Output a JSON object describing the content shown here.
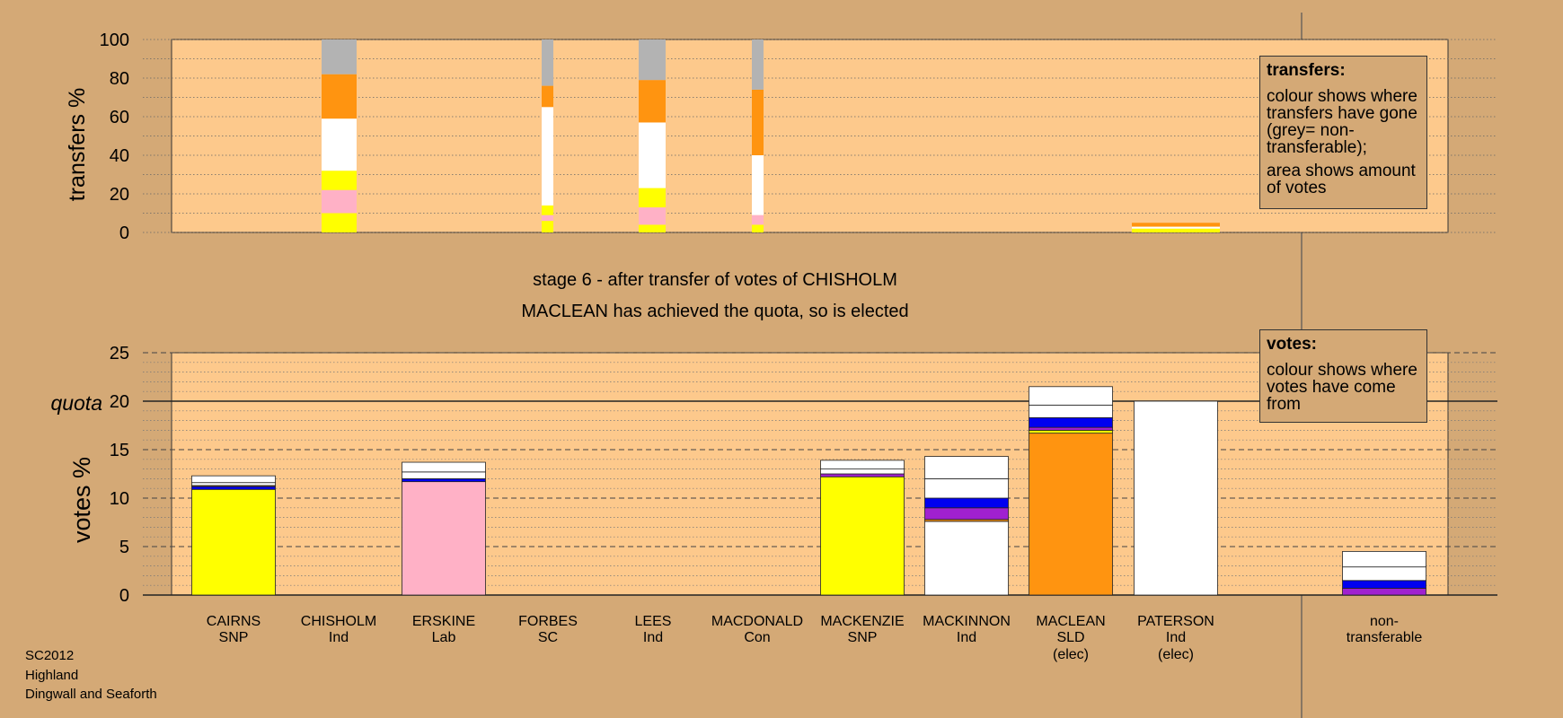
{
  "stage_title": "stage 6 - after transfer of votes of CHISHOLM",
  "stage_subtitle": "MACLEAN has achieved the quota, so is elected",
  "footer": {
    "line1": "SC2012",
    "line2": "Highland",
    "line3": "Dingwall and Seaforth"
  },
  "legend_transfers": {
    "title": "transfers:",
    "para1": "colour shows where transfers have gone (grey= non-transferable);",
    "para2": "area shows amount of votes"
  },
  "legend_votes": {
    "title": "votes:",
    "para1": "colour shows where votes have come from"
  },
  "colors": {
    "background": "#d4a976",
    "plot_area": "#fdc98c",
    "SNP": "#ffff00",
    "Lab": "#ffb1c6",
    "SLD": "#ff9410",
    "Ind": "#ffffff",
    "Con": "#0000f0",
    "SC": "#a020d0",
    "nontransferable": "#b3b3b3"
  },
  "chart_data": [
    {
      "type": "bar",
      "stacked": true,
      "ylabel": "transfers %",
      "ylim": [
        0,
        100
      ],
      "yticks": [
        0,
        20,
        40,
        60,
        80,
        100
      ],
      "grid": "dotted horizontal",
      "bars": [
        {
          "candidate": "CHISHOLM",
          "segments": [
            {
              "color": "SNP",
              "value": 10
            },
            {
              "color": "Lab",
              "value": 12
            },
            {
              "color": "SNP",
              "value": 10
            },
            {
              "color": "Ind",
              "value": 27
            },
            {
              "color": "SLD",
              "value": 23
            },
            {
              "color": "nontransferable",
              "value": 18
            }
          ]
        },
        {
          "candidate": "FORBES",
          "segments": [
            {
              "color": "SNP",
              "value": 6
            },
            {
              "color": "Lab",
              "value": 3
            },
            {
              "color": "SNP",
              "value": 5
            },
            {
              "color": "Ind",
              "value": 51
            },
            {
              "color": "SLD",
              "value": 11
            },
            {
              "color": "nontransferable",
              "value": 24
            }
          ]
        },
        {
          "candidate": "LEES",
          "segments": [
            {
              "color": "SNP",
              "value": 4
            },
            {
              "color": "Lab",
              "value": 9
            },
            {
              "color": "SNP",
              "value": 10
            },
            {
              "color": "Ind",
              "value": 34
            },
            {
              "color": "SLD",
              "value": 22
            },
            {
              "color": "nontransferable",
              "value": 21
            }
          ]
        },
        {
          "candidate": "MACDONALD",
          "segments": [
            {
              "color": "SNP",
              "value": 4
            },
            {
              "color": "Lab",
              "value": 5
            },
            {
              "color": "Ind",
              "value": 31
            },
            {
              "color": "SLD",
              "value": 34
            },
            {
              "color": "nontransferable",
              "value": 26
            }
          ]
        },
        {
          "candidate": "PATERSON",
          "segments": [
            {
              "color": "SNP",
              "value": 2
            },
            {
              "color": "Ind",
              "value": 1
            },
            {
              "color": "SLD",
              "value": 2
            }
          ]
        }
      ]
    },
    {
      "type": "bar",
      "stacked": true,
      "ylabel": "votes %",
      "ylim": [
        0,
        25
      ],
      "yticks": [
        0,
        5,
        10,
        15,
        20,
        25
      ],
      "quota": 20,
      "quota_label": "quota",
      "grid": "dashed major, dotted minor",
      "categories": [
        {
          "name": "CAIRNS",
          "party": "SNP",
          "note": ""
        },
        {
          "name": "CHISHOLM",
          "party": "Ind",
          "note": ""
        },
        {
          "name": "ERSKINE",
          "party": "Lab",
          "note": ""
        },
        {
          "name": "FORBES",
          "party": "SC",
          "note": ""
        },
        {
          "name": "LEES",
          "party": "Ind",
          "note": ""
        },
        {
          "name": "MACDONALD",
          "party": "Con",
          "note": ""
        },
        {
          "name": "MACKENZIE",
          "party": "SNP",
          "note": ""
        },
        {
          "name": "MACKINNON",
          "party": "Ind",
          "note": ""
        },
        {
          "name": "MACLEAN",
          "party": "SLD",
          "note": "(elec)"
        },
        {
          "name": "PATERSON",
          "party": "Ind",
          "note": "(elec)"
        },
        {
          "name": "non-",
          "party": "transferable",
          "note": ""
        }
      ],
      "bars": [
        {
          "segments": [
            {
              "color": "SNP",
              "value": 10.9
            },
            {
              "color": "Con",
              "value": 0.3
            },
            {
              "color": "SLD",
              "value": 0.1
            },
            {
              "color": "Ind",
              "value": 0.3
            },
            {
              "color": "Ind",
              "value": 0.7
            }
          ]
        },
        {
          "segments": []
        },
        {
          "segments": [
            {
              "color": "Lab",
              "value": 11.7
            },
            {
              "color": "Con",
              "value": 0.3
            },
            {
              "color": "Ind",
              "value": 0.7
            },
            {
              "color": "Ind",
              "value": 1.0
            }
          ]
        },
        {
          "segments": []
        },
        {
          "segments": []
        },
        {
          "segments": []
        },
        {
          "segments": [
            {
              "color": "SNP",
              "value": 12.2
            },
            {
              "color": "SC",
              "value": 0.3
            },
            {
              "color": "Ind",
              "value": 0.5
            },
            {
              "color": "Ind",
              "value": 0.9
            }
          ]
        },
        {
          "segments": [
            {
              "color": "Ind",
              "value": 7.6
            },
            {
              "color": "SLD",
              "value": 0.2
            },
            {
              "color": "SC",
              "value": 1.2
            },
            {
              "color": "Con",
              "value": 1.0
            },
            {
              "color": "Ind",
              "value": 2.0
            },
            {
              "color": "Ind",
              "value": 2.3
            }
          ]
        },
        {
          "segments": [
            {
              "color": "SLD",
              "value": 16.7
            },
            {
              "color": "SNP",
              "value": 0.3
            },
            {
              "color": "SC",
              "value": 0.3
            },
            {
              "color": "Con",
              "value": 1.0
            },
            {
              "color": "Ind",
              "value": 1.3
            },
            {
              "color": "Ind",
              "value": 1.9
            }
          ]
        },
        {
          "segments": [
            {
              "color": "Ind",
              "value": 20
            }
          ]
        },
        {
          "segments": [
            {
              "color": "SC",
              "value": 0.7
            },
            {
              "color": "Con",
              "value": 0.8
            },
            {
              "color": "Ind",
              "value": 1.4
            },
            {
              "color": "Ind",
              "value": 1.6
            }
          ]
        }
      ]
    }
  ]
}
